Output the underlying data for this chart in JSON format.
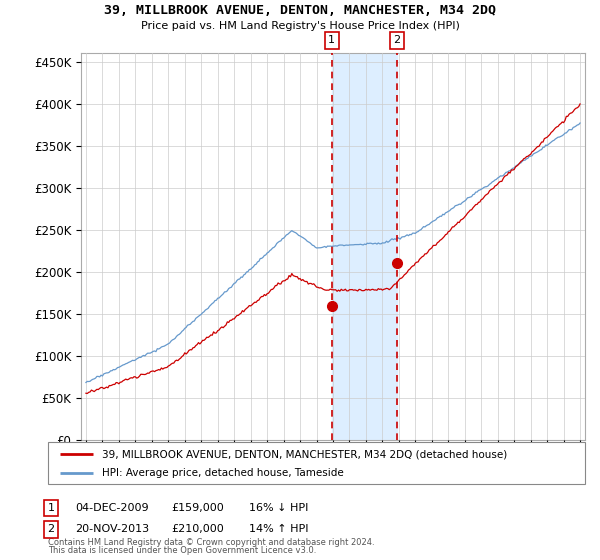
{
  "title": "39, MILLBROOK AVENUE, DENTON, MANCHESTER, M34 2DQ",
  "subtitle": "Price paid vs. HM Land Registry's House Price Index (HPI)",
  "legend_line1": "39, MILLBROOK AVENUE, DENTON, MANCHESTER, M34 2DQ (detached house)",
  "legend_line2": "HPI: Average price, detached house, Tameside",
  "sale1_date": "04-DEC-2009",
  "sale1_price": 159000,
  "sale1_pct": "16% ↓ HPI",
  "sale1_year": 2009.92,
  "sale2_date": "20-NOV-2013",
  "sale2_price": 210000,
  "sale2_pct": "14% ↑ HPI",
  "sale2_year": 2013.88,
  "footer1": "Contains HM Land Registry data © Crown copyright and database right 2024.",
  "footer2": "This data is licensed under the Open Government Licence v3.0.",
  "red_color": "#cc0000",
  "blue_color": "#6699cc",
  "shade_color": "#ddeeff",
  "background_color": "#ffffff",
  "ylim": [
    0,
    460000
  ],
  "xlim": [
    1994.7,
    2025.3
  ]
}
